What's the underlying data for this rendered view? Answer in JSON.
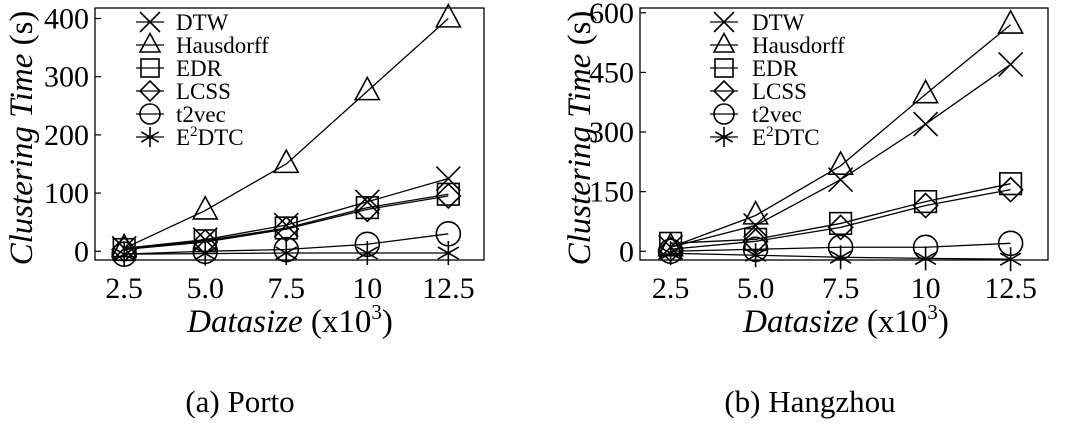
{
  "panels": [
    {
      "caption": "(a)  Porto",
      "chart_data": {
        "type": "line",
        "xlabel_italic": "Datasize",
        "xlabel_unit": " (x10",
        "xlabel_exp": "3",
        "xlabel_close": ")",
        "ylabel_italic": "Clustering Time",
        "ylabel_unit": " (s)",
        "x_ticks": [
          2.5,
          5.0,
          7.5,
          10,
          12.5
        ],
        "x_tick_labels": [
          "2.5",
          "5.0",
          "7.5",
          "10",
          "12.5"
        ],
        "y_ticks": [
          0,
          100,
          200,
          300,
          400
        ],
        "y_tick_labels": [
          "0",
          "100",
          "200",
          "300",
          "400"
        ],
        "xlim": [
          1.6,
          13.6
        ],
        "ylim": [
          -15,
          418
        ],
        "grid": false,
        "legend_position": "top-left",
        "series": [
          {
            "name": "DTW",
            "marker": "x",
            "x": [
              2.5,
              5.0,
              7.5,
              10,
              12.5
            ],
            "values": [
              5,
              20,
              45,
              85,
              125
            ]
          },
          {
            "name": "Hausdorff",
            "marker": "triangle",
            "x": [
              2.5,
              5.0,
              7.5,
              10,
              12.5
            ],
            "values": [
              5,
              70,
              150,
              275,
              400
            ]
          },
          {
            "name": "EDR",
            "marker": "square",
            "x": [
              2.5,
              5.0,
              7.5,
              10,
              12.5
            ],
            "values": [
              3,
              18,
              40,
              75,
              98
            ]
          },
          {
            "name": "LCSS",
            "marker": "diamond",
            "x": [
              2.5,
              5.0,
              7.5,
              10,
              12.5
            ],
            "values": [
              3,
              16,
              38,
              72,
              95
            ]
          },
          {
            "name": "t2vec",
            "marker": "circle",
            "x": [
              2.5,
              5.0,
              7.5,
              10,
              12.5
            ],
            "values": [
              -5,
              0,
              3,
              12,
              30
            ]
          },
          {
            "name": "E2DTC",
            "name_base": "E",
            "name_sup": "2",
            "name_rest": "DTC",
            "marker": "asterisk",
            "x": [
              2.5,
              5.0,
              7.5,
              10,
              12.5
            ],
            "values": [
              -5,
              -4,
              -3,
              -3,
              -3
            ]
          }
        ]
      }
    },
    {
      "caption": "(b)  Hangzhou",
      "chart_data": {
        "type": "line",
        "xlabel_italic": "Datasize",
        "xlabel_unit": " (x10",
        "xlabel_exp": "3",
        "xlabel_close": ")",
        "ylabel_italic": "Clustering Time",
        "ylabel_unit": " (s)",
        "x_ticks": [
          2.5,
          5.0,
          7.5,
          10,
          12.5
        ],
        "x_tick_labels": [
          "2.5",
          "5.0",
          "7.5",
          "10",
          "12.5"
        ],
        "y_ticks": [
          0,
          150,
          300,
          450,
          600
        ],
        "y_tick_labels": [
          "0",
          "150",
          "300",
          "450",
          "600"
        ],
        "xlim": [
          1.6,
          13.6
        ],
        "ylim": [
          -22,
          612
        ],
        "grid": false,
        "legend_position": "top-left",
        "series": [
          {
            "name": "DTW",
            "marker": "x",
            "x": [
              2.5,
              5.0,
              7.5,
              10,
              12.5
            ],
            "values": [
              10,
              65,
              180,
              320,
              470
            ]
          },
          {
            "name": "Hausdorff",
            "marker": "triangle",
            "x": [
              2.5,
              5.0,
              7.5,
              10,
              12.5
            ],
            "values": [
              10,
              90,
              215,
              395,
              570
            ]
          },
          {
            "name": "EDR",
            "marker": "square",
            "x": [
              2.5,
              5.0,
              7.5,
              10,
              12.5
            ],
            "values": [
              20,
              30,
              70,
              125,
              170
            ]
          },
          {
            "name": "LCSS",
            "marker": "diamond",
            "x": [
              2.5,
              5.0,
              7.5,
              10,
              12.5
            ],
            "values": [
              5,
              25,
              60,
              115,
              155
            ]
          },
          {
            "name": "t2vec",
            "marker": "circle",
            "x": [
              2.5,
              5.0,
              7.5,
              10,
              12.5
            ],
            "values": [
              0,
              5,
              10,
              10,
              20
            ]
          },
          {
            "name": "E2DTC",
            "name_base": "E",
            "name_sup": "2",
            "name_rest": "DTC",
            "marker": "asterisk",
            "x": [
              2.5,
              5.0,
              7.5,
              10,
              12.5
            ],
            "values": [
              -5,
              -10,
              -15,
              -18,
              -20
            ]
          }
        ]
      }
    }
  ]
}
